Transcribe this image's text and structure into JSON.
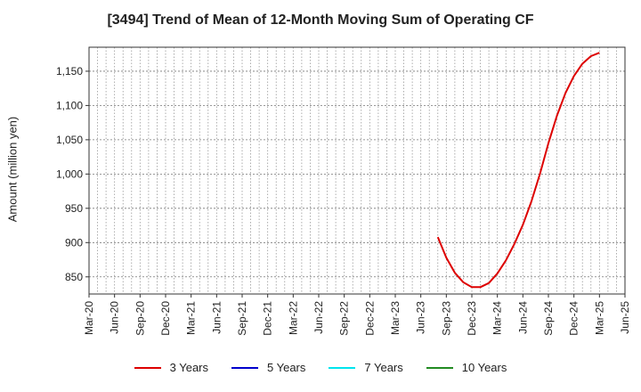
{
  "chart_data": {
    "type": "line",
    "title": "[3494]  Trend of Mean of 12-Month Moving Sum of Operating CF",
    "ylabel": "Amount (million yen)",
    "xlabel": "",
    "ylim": [
      825,
      1185
    ],
    "yticks": [
      850,
      900,
      950,
      1000,
      1050,
      1100,
      1150
    ],
    "ytick_labels": [
      "850",
      "900",
      "950",
      "1,000",
      "1,050",
      "1,100",
      "1,150"
    ],
    "x_tick_labels": [
      "Mar-20",
      "Jun-20",
      "Sep-20",
      "Dec-20",
      "Mar-21",
      "Jun-21",
      "Sep-21",
      "Dec-21",
      "Mar-22",
      "Jun-22",
      "Sep-22",
      "Dec-22",
      "Mar-23",
      "Jun-23",
      "Sep-23",
      "Dec-23",
      "Mar-24",
      "Jun-24",
      "Sep-24",
      "Dec-24",
      "Mar-25",
      "Jun-25"
    ],
    "grid": true,
    "legend_position": "bottom",
    "series": [
      {
        "name": "3 Years",
        "color": "#dd0000",
        "x": [
          "Aug-23",
          "Sep-23",
          "Oct-23",
          "Nov-23",
          "Dec-23",
          "Jan-24",
          "Feb-24",
          "Mar-24",
          "Apr-24",
          "May-24",
          "Jun-24",
          "Jul-24",
          "Aug-24",
          "Sep-24",
          "Oct-24",
          "Nov-24",
          "Dec-24",
          "Jan-25",
          "Feb-25",
          "Mar-25"
        ],
        "values": [
          908,
          878,
          856,
          842,
          835,
          835,
          841,
          855,
          874,
          898,
          926,
          960,
          1000,
          1045,
          1085,
          1118,
          1143,
          1161,
          1172,
          1177
        ]
      },
      {
        "name": "5 Years",
        "color": "#0000cc",
        "x": [],
        "values": []
      },
      {
        "name": "7 Years",
        "color": "#00e5ee",
        "x": [],
        "values": []
      },
      {
        "name": "10 Years",
        "color": "#228b22",
        "x": [],
        "values": []
      }
    ]
  }
}
